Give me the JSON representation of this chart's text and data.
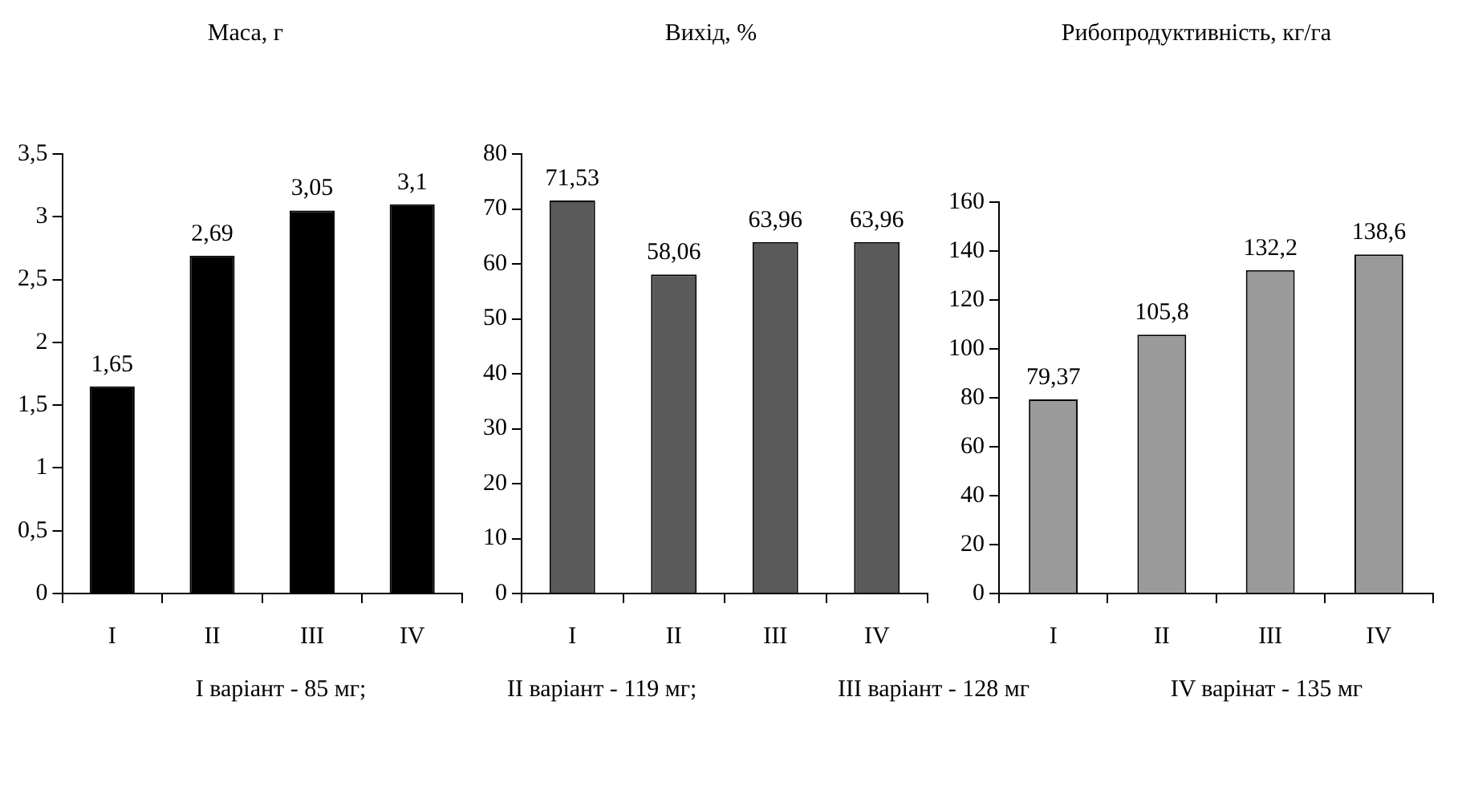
{
  "chart_data": [
    {
      "type": "bar",
      "title": "Маса, г",
      "categories": [
        "I",
        "II",
        "III",
        "IV"
      ],
      "values": [
        1.65,
        2.69,
        3.05,
        3.1
      ],
      "value_labels": [
        "1,65",
        "2,69",
        "3,05",
        "3,1"
      ],
      "color": "#000000",
      "ylim": [
        0,
        3.5
      ],
      "yticks": [
        0,
        {
          "value": 0.5,
          "label": "0,5"
        },
        1,
        {
          "value": 1.5,
          "label": "1,5"
        },
        2,
        {
          "value": 2.5,
          "label": "2,5"
        },
        3,
        {
          "value": 3.5,
          "label": "3,5"
        }
      ]
    },
    {
      "type": "bar",
      "title": "Вихід, %",
      "categories": [
        "I",
        "II",
        "III",
        "IV"
      ],
      "values": [
        71.53,
        58.06,
        63.96,
        63.96
      ],
      "value_labels": [
        "71,53",
        "58,06",
        "63,96",
        "63,96"
      ],
      "color": "#5a5a5a",
      "ylim": [
        0,
        80
      ],
      "yticks": [
        0,
        10,
        20,
        30,
        40,
        50,
        60,
        70,
        80
      ]
    },
    {
      "type": "bar",
      "title": "Рибопродуктивність, кг/га",
      "categories": [
        "I",
        "II",
        "III",
        "IV"
      ],
      "values": [
        79.37,
        105.8,
        132.2,
        138.6
      ],
      "value_labels": [
        "79,37",
        "105,8",
        "132,2",
        "138,6"
      ],
      "color": "#9a9a9a",
      "ylim": [
        0,
        160
      ],
      "yticks": [
        0,
        20,
        40,
        60,
        80,
        100,
        120,
        140,
        160
      ],
      "annotations": [
        "I варіант - 85 мг;",
        "II варіант - 119 мг;",
        "III варіант - 128 мг",
        "IV варінат - 135 мг"
      ]
    }
  ]
}
